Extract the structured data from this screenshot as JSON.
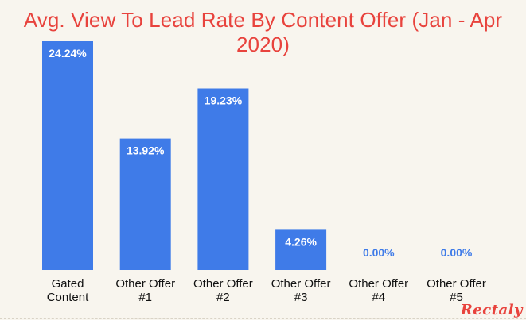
{
  "chart_data": {
    "type": "bar",
    "title": "Avg. View To Lead Rate By Content Offer (Jan - Apr 2020)",
    "categories": [
      [
        "Gated",
        "Content"
      ],
      [
        "Other Offer",
        "#1"
      ],
      [
        "Other Offer",
        "#2"
      ],
      [
        "Other Offer",
        "#3"
      ],
      [
        "Other Offer",
        "#4"
      ],
      [
        "Other Offer",
        "#5"
      ]
    ],
    "values": [
      24.24,
      13.92,
      19.23,
      4.26,
      0.0,
      0.0
    ],
    "value_labels": [
      "24.24%",
      "13.92%",
      "19.23%",
      "4.26%",
      "0.00%",
      "0.00%"
    ],
    "ylim": [
      0,
      24.24
    ],
    "grid": false,
    "bar_color": "#3f7be8",
    "label_inside_color": "#ffffff",
    "label_outside_color": "#3f7be8"
  },
  "brand": {
    "logo_text": "Rectaly"
  },
  "colors": {
    "title": "#e8433d",
    "background": "#f8f5ee"
  }
}
